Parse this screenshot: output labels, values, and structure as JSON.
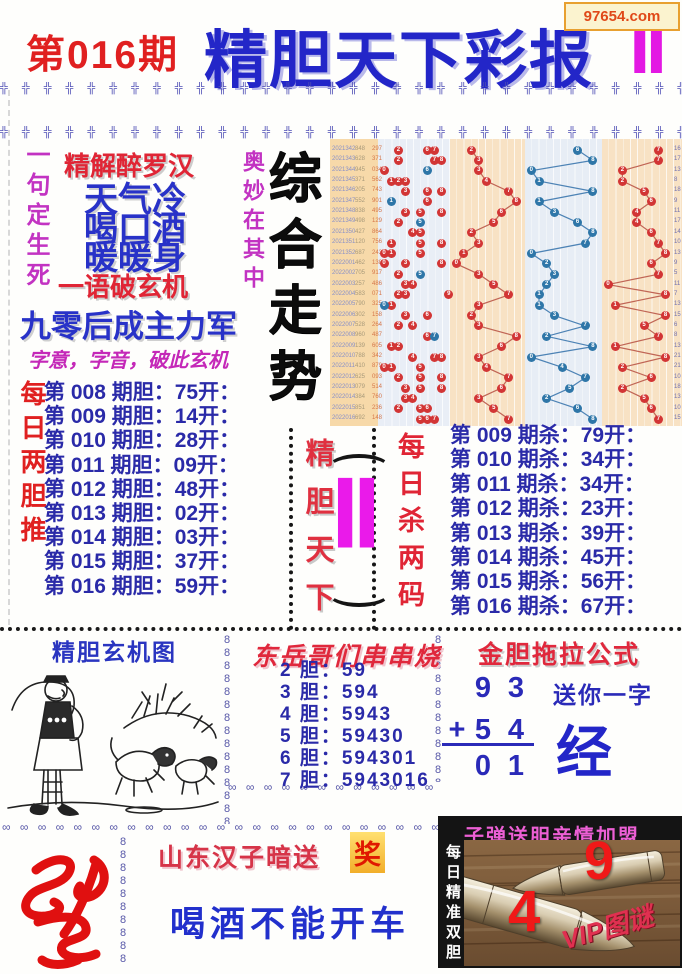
{
  "header": {
    "issue": "第016期",
    "title": "精胆天下彩报",
    "title_suffix": "Ⅱ",
    "site": "97654.com"
  },
  "decor": {
    "star": "╬",
    "chain_v": "8",
    "chain_h": "∞"
  },
  "left_panel": {
    "vertical_left": "一句定生死",
    "slogan_title": "精解醉罗汉",
    "poem": [
      "天气冷",
      "喝口酒",
      "暖暖身"
    ],
    "slogan_footer": "一语破玄机",
    "vertical_right": "奥妙在其中",
    "main_line": "九零后成主力军",
    "hint_line": "字意，字音，破此玄机"
  },
  "dan_section": {
    "vertical_label": "每日两胆推",
    "rows": [
      "第 008 期胆：75开：",
      "第 009 期胆：14开：",
      "第 010 期胆：28开：",
      "第 011 期胆：09开：",
      "第 012 期胆：48开：",
      "第 013 期胆：02开：",
      "第 014 期胆：03开：",
      "第 015 期胆：37开：",
      "第 016 期胆：59开："
    ]
  },
  "center_box": {
    "vertical_text": "精胆天下",
    "symbol": "Ⅱ"
  },
  "sha_section": {
    "vertical_label": "每日杀两码",
    "rows": [
      "第 009 期杀：79开：",
      "第 010 期杀：34开：",
      "第 011 期杀：34开：",
      "第 012 期杀：23开：",
      "第 013 期杀：39开：",
      "第 014 期杀：45开：",
      "第 015 期杀：56开：",
      "第 016 期杀：67开："
    ]
  },
  "chart_data": {
    "type": "scatter",
    "title": "综合走势",
    "legend_position": "none",
    "grid": true,
    "bands": [
      "散点区",
      "走势一",
      "走势二",
      "走势三"
    ],
    "rows": [
      {
        "label": "2021342",
        "n1": "848",
        "n2": "297",
        "red": [
          2,
          6,
          7
        ],
        "blue": [],
        "b": 2,
        "c": 6,
        "d": 7,
        "r": 16
      },
      {
        "label": "2021343",
        "n1": "628",
        "n2": "371",
        "red": [
          2,
          7,
          8
        ],
        "blue": [],
        "b": 3,
        "c": 8,
        "d": 7,
        "r": 17
      },
      {
        "label": "2021344",
        "n1": "945",
        "n2": "034",
        "red": [
          0
        ],
        "blue": [
          6
        ],
        "b": 3,
        "c": 0,
        "d": 2,
        "r": 13
      },
      {
        "label": "2021345",
        "n1": "371",
        "n2": "562",
        "red": [
          1,
          2,
          3
        ],
        "blue": [],
        "b": 4,
        "c": 1,
        "d": 2,
        "r": 8
      },
      {
        "label": "2021346",
        "n1": "205",
        "n2": "743",
        "red": [
          3,
          6,
          8
        ],
        "blue": [],
        "b": 7,
        "c": 8,
        "d": 5,
        "r": 18
      },
      {
        "label": "2021347",
        "n1": "552",
        "n2": "901",
        "red": [
          6
        ],
        "blue": [
          1
        ],
        "b": 8,
        "c": 1,
        "d": 6,
        "r": 9
      },
      {
        "label": "2021348",
        "n1": "838",
        "n2": "495",
        "red": [
          3,
          5,
          8
        ],
        "blue": [],
        "b": 6,
        "c": 3,
        "d": 4,
        "r": 11
      },
      {
        "label": "2021349",
        "n1": "498",
        "n2": "129",
        "red": [
          2
        ],
        "blue": [
          5
        ],
        "b": 5,
        "c": 6,
        "d": 4,
        "r": 17
      },
      {
        "label": "2021350",
        "n1": "427",
        "n2": "864",
        "red": [
          4,
          5
        ],
        "blue": [],
        "b": 2,
        "c": 8,
        "d": 6,
        "r": 14
      },
      {
        "label": "2021351",
        "n1": "120",
        "n2": "756",
        "red": [
          1,
          5,
          8
        ],
        "blue": [],
        "b": 3,
        "c": 7,
        "d": 7,
        "r": 10
      },
      {
        "label": "2021352",
        "n1": "687",
        "n2": "243",
        "red": [
          0,
          1,
          5
        ],
        "blue": [],
        "b": 1,
        "c": 0,
        "d": 8,
        "r": 13
      },
      {
        "label": "2022001",
        "n1": "462",
        "n2": "138",
        "red": [
          0,
          3,
          8
        ],
        "blue": [],
        "b": 0,
        "c": 2,
        "d": 6,
        "r": 9
      },
      {
        "label": "2022002",
        "n1": "705",
        "n2": "917",
        "red": [
          2
        ],
        "blue": [
          5
        ],
        "b": 3,
        "c": 3,
        "d": 7,
        "r": 5
      },
      {
        "label": "2022003",
        "n1": "257",
        "n2": "486",
        "red": [
          3,
          4
        ],
        "blue": [],
        "b": 5,
        "c": 2,
        "d": 0,
        "r": 11
      },
      {
        "label": "2022004",
        "n1": "583",
        "n2": "071",
        "red": [
          2,
          3,
          9
        ],
        "blue": [],
        "b": 7,
        "c": 1,
        "d": 8,
        "r": 7
      },
      {
        "label": "2022005",
        "n1": "790",
        "n2": "325",
        "red": [
          1
        ],
        "blue": [
          0
        ],
        "b": 3,
        "c": 1,
        "d": 1,
        "r": 13
      },
      {
        "label": "2022006",
        "n1": "302",
        "n2": "158",
        "red": [
          3,
          6
        ],
        "blue": [],
        "b": 2,
        "c": 3,
        "d": 8,
        "r": 15
      },
      {
        "label": "2022007",
        "n1": "528",
        "n2": "264",
        "red": [
          2,
          4
        ],
        "blue": [],
        "b": 3,
        "c": 7,
        "d": 5,
        "r": 6
      },
      {
        "label": "2022008",
        "n1": "960",
        "n2": "487",
        "red": [
          6
        ],
        "blue": [
          7
        ],
        "b": 8,
        "c": 2,
        "d": 7,
        "r": 8
      },
      {
        "label": "2022009",
        "n1": "139",
        "n2": "605",
        "red": [
          1,
          2
        ],
        "blue": [],
        "b": 6,
        "c": 8,
        "d": 1,
        "r": 13
      },
      {
        "label": "2022010",
        "n1": "788",
        "n2": "342",
        "red": [
          4,
          7,
          8
        ],
        "blue": [],
        "b": 3,
        "c": 0,
        "d": 8,
        "r": 21
      },
      {
        "label": "2022011",
        "n1": "410",
        "n2": "879",
        "red": [
          0,
          1,
          5
        ],
        "blue": [],
        "b": 4,
        "c": 4,
        "d": 2,
        "r": 21
      },
      {
        "label": "2022012",
        "n1": "625",
        "n2": "093",
        "red": [
          2,
          5,
          8
        ],
        "blue": [],
        "b": 7,
        "c": 7,
        "d": 6,
        "r": 10
      },
      {
        "label": "2022013",
        "n1": "079",
        "n2": "514",
        "red": [
          3,
          5,
          8
        ],
        "blue": [],
        "b": 6,
        "c": 5,
        "d": 2,
        "r": 18
      },
      {
        "label": "2022014",
        "n1": "384",
        "n2": "760",
        "red": [
          3,
          4
        ],
        "blue": [],
        "b": 3,
        "c": 2,
        "d": 5,
        "r": 13
      },
      {
        "label": "2022015",
        "n1": "851",
        "n2": "236",
        "red": [
          2,
          5,
          6
        ],
        "blue": [],
        "b": 5,
        "c": 6,
        "d": 6,
        "r": 10
      },
      {
        "label": "2022016",
        "n1": "692",
        "n2": "148",
        "red": [
          5,
          6,
          7
        ],
        "blue": [],
        "b": 7,
        "c": 8,
        "d": 7,
        "r": 15
      }
    ]
  },
  "mystery_box": {
    "title": "精胆玄机图"
  },
  "chuan_box": {
    "title": "东岳哥们串串烧",
    "rows": [
      "2 胆：59",
      "3 胆：594",
      "4 胆：5943",
      "5 胆：59430",
      "6 胆：594301",
      "7 胆：5943016"
    ]
  },
  "formula_box": {
    "title": "金胆拖拉公式",
    "row1": [
      "9",
      "3"
    ],
    "op": "+",
    "row2": [
      "5",
      "4"
    ],
    "result": [
      "0",
      "1"
    ],
    "gift_label": "送你一字",
    "gift_char": "经"
  },
  "bullet_panel": {
    "title": "子弹送胆亲情加盟",
    "vertical_text": "每日精准双胆",
    "num_top": "9",
    "num_bottom": "4",
    "watermark": "VIP图谜"
  },
  "bottom": {
    "line1": "山东汉子暗送",
    "badge": "奖",
    "line2": "喝酒不能开车"
  },
  "palette": {
    "header_blue": "#2326c8",
    "red": "#e02020",
    "magenta": "#e318e3",
    "list_blue": "#2a2aa8",
    "dot_red": "#d23535",
    "dot_blue": "#2e76a8",
    "gold": "#f2ae2a",
    "panel_black": "#141414",
    "pink_title": "#ec5fd4"
  }
}
